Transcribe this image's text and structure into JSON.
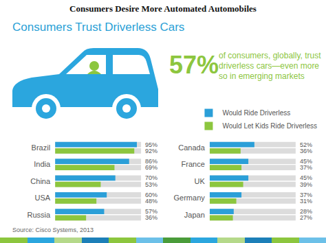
{
  "title": "Consumers Desire More Automated Automobiles",
  "subtitle": "Consumers Trust Driverless Cars",
  "annotations": [
    "57%",
    "of consumers, globally, trust driverless cars—even more so in emerging markets"
  ],
  "source": "Source: Cisco Systems, 2013",
  "chart_data": [
    {
      "type": "bar",
      "orientation": "horizontal",
      "categories": [
        "Brazil",
        "India",
        "China",
        "USA",
        "Russia"
      ],
      "series": [
        {
          "name": "Would Ride Driverless",
          "color": "#2b9fd8",
          "values": [
            95,
            86,
            70,
            60,
            57
          ],
          "value_labels": [
            "95%",
            "86%",
            "70%",
            "60%",
            "57%"
          ]
        },
        {
          "name": "Would Let Kids Ride Driverless",
          "color": "#8cc63e",
          "values": [
            92,
            69,
            53,
            48,
            36
          ],
          "value_labels": [
            "92%",
            "69%",
            "53%",
            "48%",
            "36%"
          ]
        }
      ],
      "xlim": [
        0,
        100
      ],
      "xticks": [
        0,
        100
      ],
      "grid": true,
      "tick_labels": "y",
      "data_labels": true
    },
    {
      "type": "bar",
      "orientation": "horizontal",
      "categories": [
        "Canada",
        "France",
        "UK",
        "Germany",
        "Japan"
      ],
      "series": [
        {
          "name": "Would Ride Driverless",
          "color": "#2b9fd8",
          "values": [
            52,
            45,
            45,
            37,
            28
          ],
          "value_labels": [
            "52%",
            "45%",
            "45%",
            "37%",
            "28%"
          ]
        },
        {
          "name": "Would Let Kids Ride Driverless",
          "color": "#8cc63e",
          "values": [
            36,
            37,
            39,
            31,
            27
          ],
          "value_labels": [
            "36%",
            "37%",
            "39%",
            "31%",
            "27%"
          ]
        }
      ],
      "xlim": [
        0,
        100
      ],
      "xticks": [
        0,
        100
      ],
      "grid": true,
      "tick_labels": "y",
      "data_labels": true,
      "legend": "top"
    }
  ]
}
